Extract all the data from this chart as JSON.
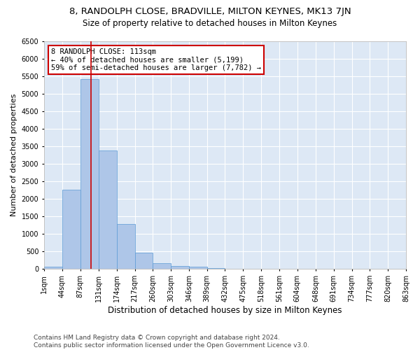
{
  "title": "8, RANDOLPH CLOSE, BRADVILLE, MILTON KEYNES, MK13 7JN",
  "subtitle": "Size of property relative to detached houses in Milton Keynes",
  "xlabel": "Distribution of detached houses by size in Milton Keynes",
  "ylabel": "Number of detached properties",
  "footer_line1": "Contains HM Land Registry data © Crown copyright and database right 2024.",
  "footer_line2": "Contains public sector information licensed under the Open Government Licence v3.0.",
  "annotation_title": "8 RANDOLPH CLOSE: 113sqm",
  "annotation_line1": "← 40% of detached houses are smaller (5,199)",
  "annotation_line2": "59% of semi-detached houses are larger (7,782) →",
  "property_size": 113,
  "bar_edges": [
    1,
    44,
    87,
    131,
    174,
    217,
    260,
    303,
    346,
    389,
    432,
    475,
    518,
    561,
    604,
    648,
    691,
    734,
    777,
    820,
    863
  ],
  "bar_heights": [
    75,
    2270,
    5430,
    3380,
    1290,
    475,
    160,
    90,
    65,
    30,
    0,
    0,
    0,
    0,
    0,
    0,
    0,
    0,
    0,
    0
  ],
  "bar_color": "#aec6e8",
  "bar_edge_color": "#5b9bd5",
  "vline_color": "#cc0000",
  "vline_x": 113,
  "annotation_box_color": "#cc0000",
  "annotation_text_color": "#000000",
  "background_color": "#ffffff",
  "axes_facecolor": "#dde8f5",
  "grid_color": "#ffffff",
  "ylim": [
    0,
    6500
  ],
  "yticks": [
    0,
    500,
    1000,
    1500,
    2000,
    2500,
    3000,
    3500,
    4000,
    4500,
    5000,
    5500,
    6000,
    6500
  ],
  "title_fontsize": 9.5,
  "subtitle_fontsize": 8.5,
  "axis_label_fontsize": 8,
  "tick_fontsize": 7,
  "annotation_fontsize": 7.5,
  "footer_fontsize": 6.5
}
